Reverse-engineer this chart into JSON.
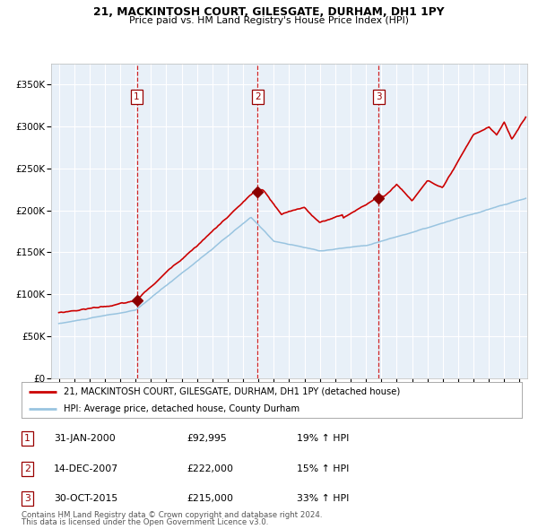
{
  "title1": "21, MACKINTOSH COURT, GILESGATE, DURHAM, DH1 1PY",
  "title2": "Price paid vs. HM Land Registry's House Price Index (HPI)",
  "plot_bg_color": "#e8f0f8",
  "red_line_color": "#cc0000",
  "blue_line_color": "#99c4e0",
  "marker_color": "#8b0000",
  "vline_color": "#cc0000",
  "legend_label_red": "21, MACKINTOSH COURT, GILESGATE, DURHAM, DH1 1PY (detached house)",
  "legend_label_blue": "HPI: Average price, detached house, County Durham",
  "footnote1": "Contains HM Land Registry data © Crown copyright and database right 2024.",
  "footnote2": "This data is licensed under the Open Government Licence v3.0.",
  "transactions": [
    {
      "num": 1,
      "date": "31-JAN-2000",
      "price": "£92,995",
      "hpi": "19% ↑ HPI",
      "year": 2000.08
    },
    {
      "num": 2,
      "date": "14-DEC-2007",
      "price": "£222,000",
      "hpi": "15% ↑ HPI",
      "year": 2007.95
    },
    {
      "num": 3,
      "date": "30-OCT-2015",
      "price": "£215,000",
      "hpi": "33% ↑ HPI",
      "year": 2015.83
    }
  ],
  "sale_years": [
    2000.08,
    2007.95,
    2015.83
  ],
  "sale_prices": [
    92995,
    222000,
    215000
  ],
  "ylim": [
    0,
    375000
  ],
  "xlim_start": 1994.5,
  "xlim_end": 2025.5,
  "yticks": [
    0,
    50000,
    100000,
    150000,
    200000,
    250000,
    300000,
    350000
  ],
  "xticks": [
    1995,
    1996,
    1997,
    1998,
    1999,
    2000,
    2001,
    2002,
    2003,
    2004,
    2005,
    2006,
    2007,
    2008,
    2009,
    2010,
    2011,
    2012,
    2013,
    2014,
    2015,
    2016,
    2017,
    2018,
    2019,
    2020,
    2021,
    2022,
    2023,
    2024,
    2025
  ]
}
